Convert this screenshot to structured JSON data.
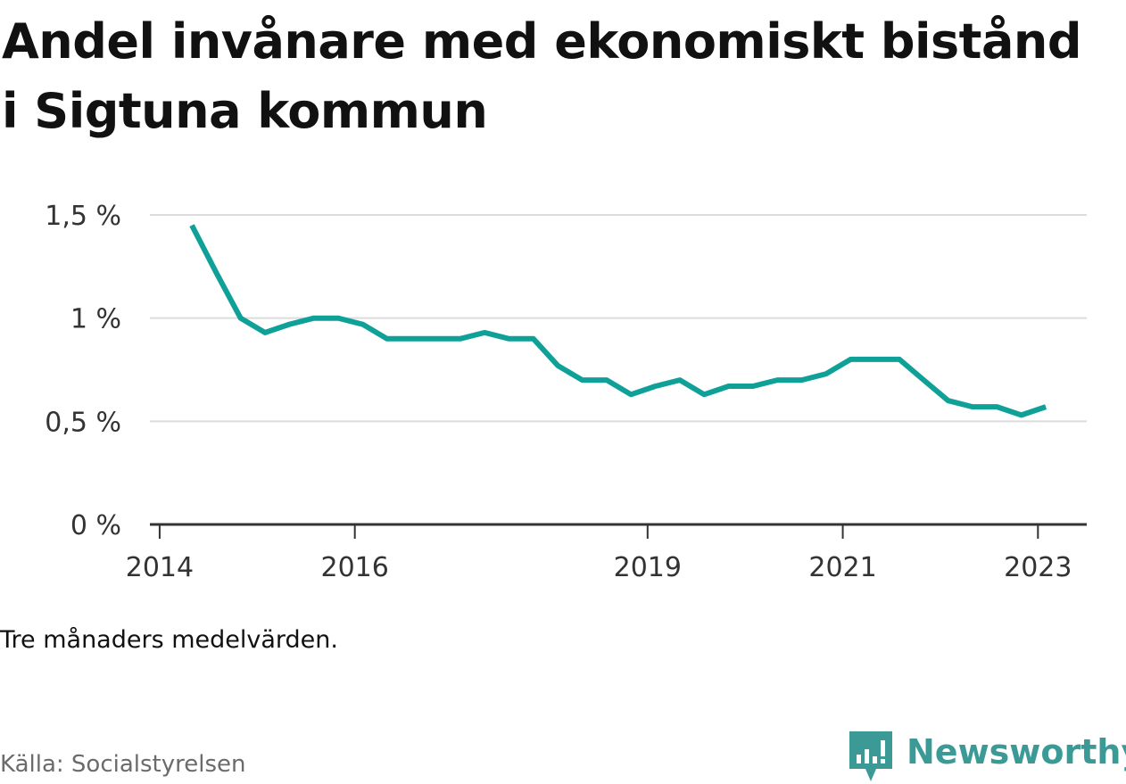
{
  "title": "Andel invånare med ekonomiskt bistånd i Sigtuna kommun",
  "note": "Tre månaders medelvärden.",
  "source": "Källa: Socialstyrelsen",
  "brand": {
    "name": "Newsworthy",
    "icon": "newsworthy-logo-icon",
    "color": "#3c9a96"
  },
  "chart_data": {
    "type": "line",
    "color": "#0fa098",
    "ylim": [
      0,
      1.5
    ],
    "y_ticks": [
      {
        "value": 0,
        "label": "0 %"
      },
      {
        "value": 0.5,
        "label": "0,5 %"
      },
      {
        "value": 1,
        "label": "1 %"
      },
      {
        "value": 1.5,
        "label": "1,5 %"
      }
    ],
    "xlim": [
      2013.9,
      2023.5
    ],
    "x_ticks": [
      {
        "value": 2014,
        "label": "2014"
      },
      {
        "value": 2016,
        "label": "2016"
      },
      {
        "value": 2019,
        "label": "2019"
      },
      {
        "value": 2021,
        "label": "2021"
      },
      {
        "value": 2023,
        "label": "2023"
      }
    ],
    "grid": true,
    "series": [
      {
        "x": [
          2014.33,
          2014.58,
          2014.83,
          2015.08,
          2015.33,
          2015.58,
          2015.83,
          2016.08,
          2016.33,
          2016.58,
          2016.83,
          2017.08,
          2017.33,
          2017.58,
          2017.83,
          2018.08,
          2018.33,
          2018.58,
          2018.83,
          2019.08,
          2019.33,
          2019.58,
          2019.83,
          2020.08,
          2020.33,
          2020.58,
          2020.83,
          2021.08,
          2021.33,
          2021.58,
          2021.83,
          2022.08,
          2022.33,
          2022.58,
          2022.83,
          2023.08
        ],
        "values": [
          1.45,
          1.22,
          1.0,
          0.93,
          0.97,
          1.0,
          1.0,
          0.97,
          0.9,
          0.9,
          0.9,
          0.9,
          0.93,
          0.9,
          0.9,
          0.77,
          0.7,
          0.7,
          0.63,
          0.67,
          0.7,
          0.63,
          0.67,
          0.67,
          0.7,
          0.7,
          0.73,
          0.8,
          0.8,
          0.8,
          0.7,
          0.6,
          0.57,
          0.57,
          0.53,
          0.57
        ]
      }
    ]
  }
}
